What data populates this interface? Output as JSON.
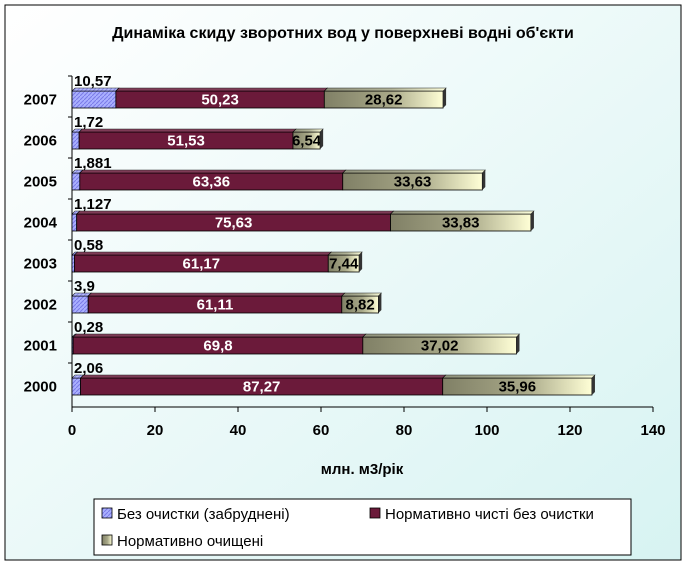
{
  "chart_data": {
    "type": "bar",
    "orientation": "horizontal",
    "stacked": true,
    "title": "Динаміка скиду зворотних вод у поверхневі водні об'єкти",
    "xlabel": "млн. м3/рік",
    "ylabel": "",
    "xlim": [
      0,
      140
    ],
    "x_ticks": [
      "0",
      "20",
      "40",
      "60",
      "80",
      "100",
      "120",
      "140"
    ],
    "grid": false,
    "legend_position": "bottom",
    "categories": [
      "2000",
      "2001",
      "2002",
      "2003",
      "2004",
      "2005",
      "2006",
      "2007"
    ],
    "series": [
      {
        "name": "Без очистки (забруднені)",
        "values": [
          2.06,
          0.28,
          3.9,
          0.58,
          1.127,
          1.881,
          1.72,
          10.57
        ],
        "labels": [
          "2,06",
          "0,28",
          "3,9",
          "0,58",
          "1,127",
          "1,881",
          "1,72",
          "10,57"
        ],
        "color": "#9999ff"
      },
      {
        "name": "Нормативно чисті без очистки",
        "values": [
          87.27,
          69.8,
          61.11,
          61.17,
          75.63,
          63.36,
          51.53,
          50.23
        ],
        "labels": [
          "87,27",
          "69,8",
          "61,11",
          "61,17",
          "75,63",
          "63,36",
          "51,53",
          "50,23"
        ],
        "color": "#6b1a3a"
      },
      {
        "name": "Нормативно очищені",
        "values": [
          35.96,
          37.02,
          8.82,
          7.44,
          33.83,
          33.63,
          6.54,
          28.62
        ],
        "labels": [
          "35,96",
          "37,02",
          "8,82",
          "7,44",
          "33,83",
          "33,63",
          "6,54",
          "28,62"
        ],
        "color_light": "#ffffcc",
        "color_dark": "#808066"
      }
    ]
  }
}
